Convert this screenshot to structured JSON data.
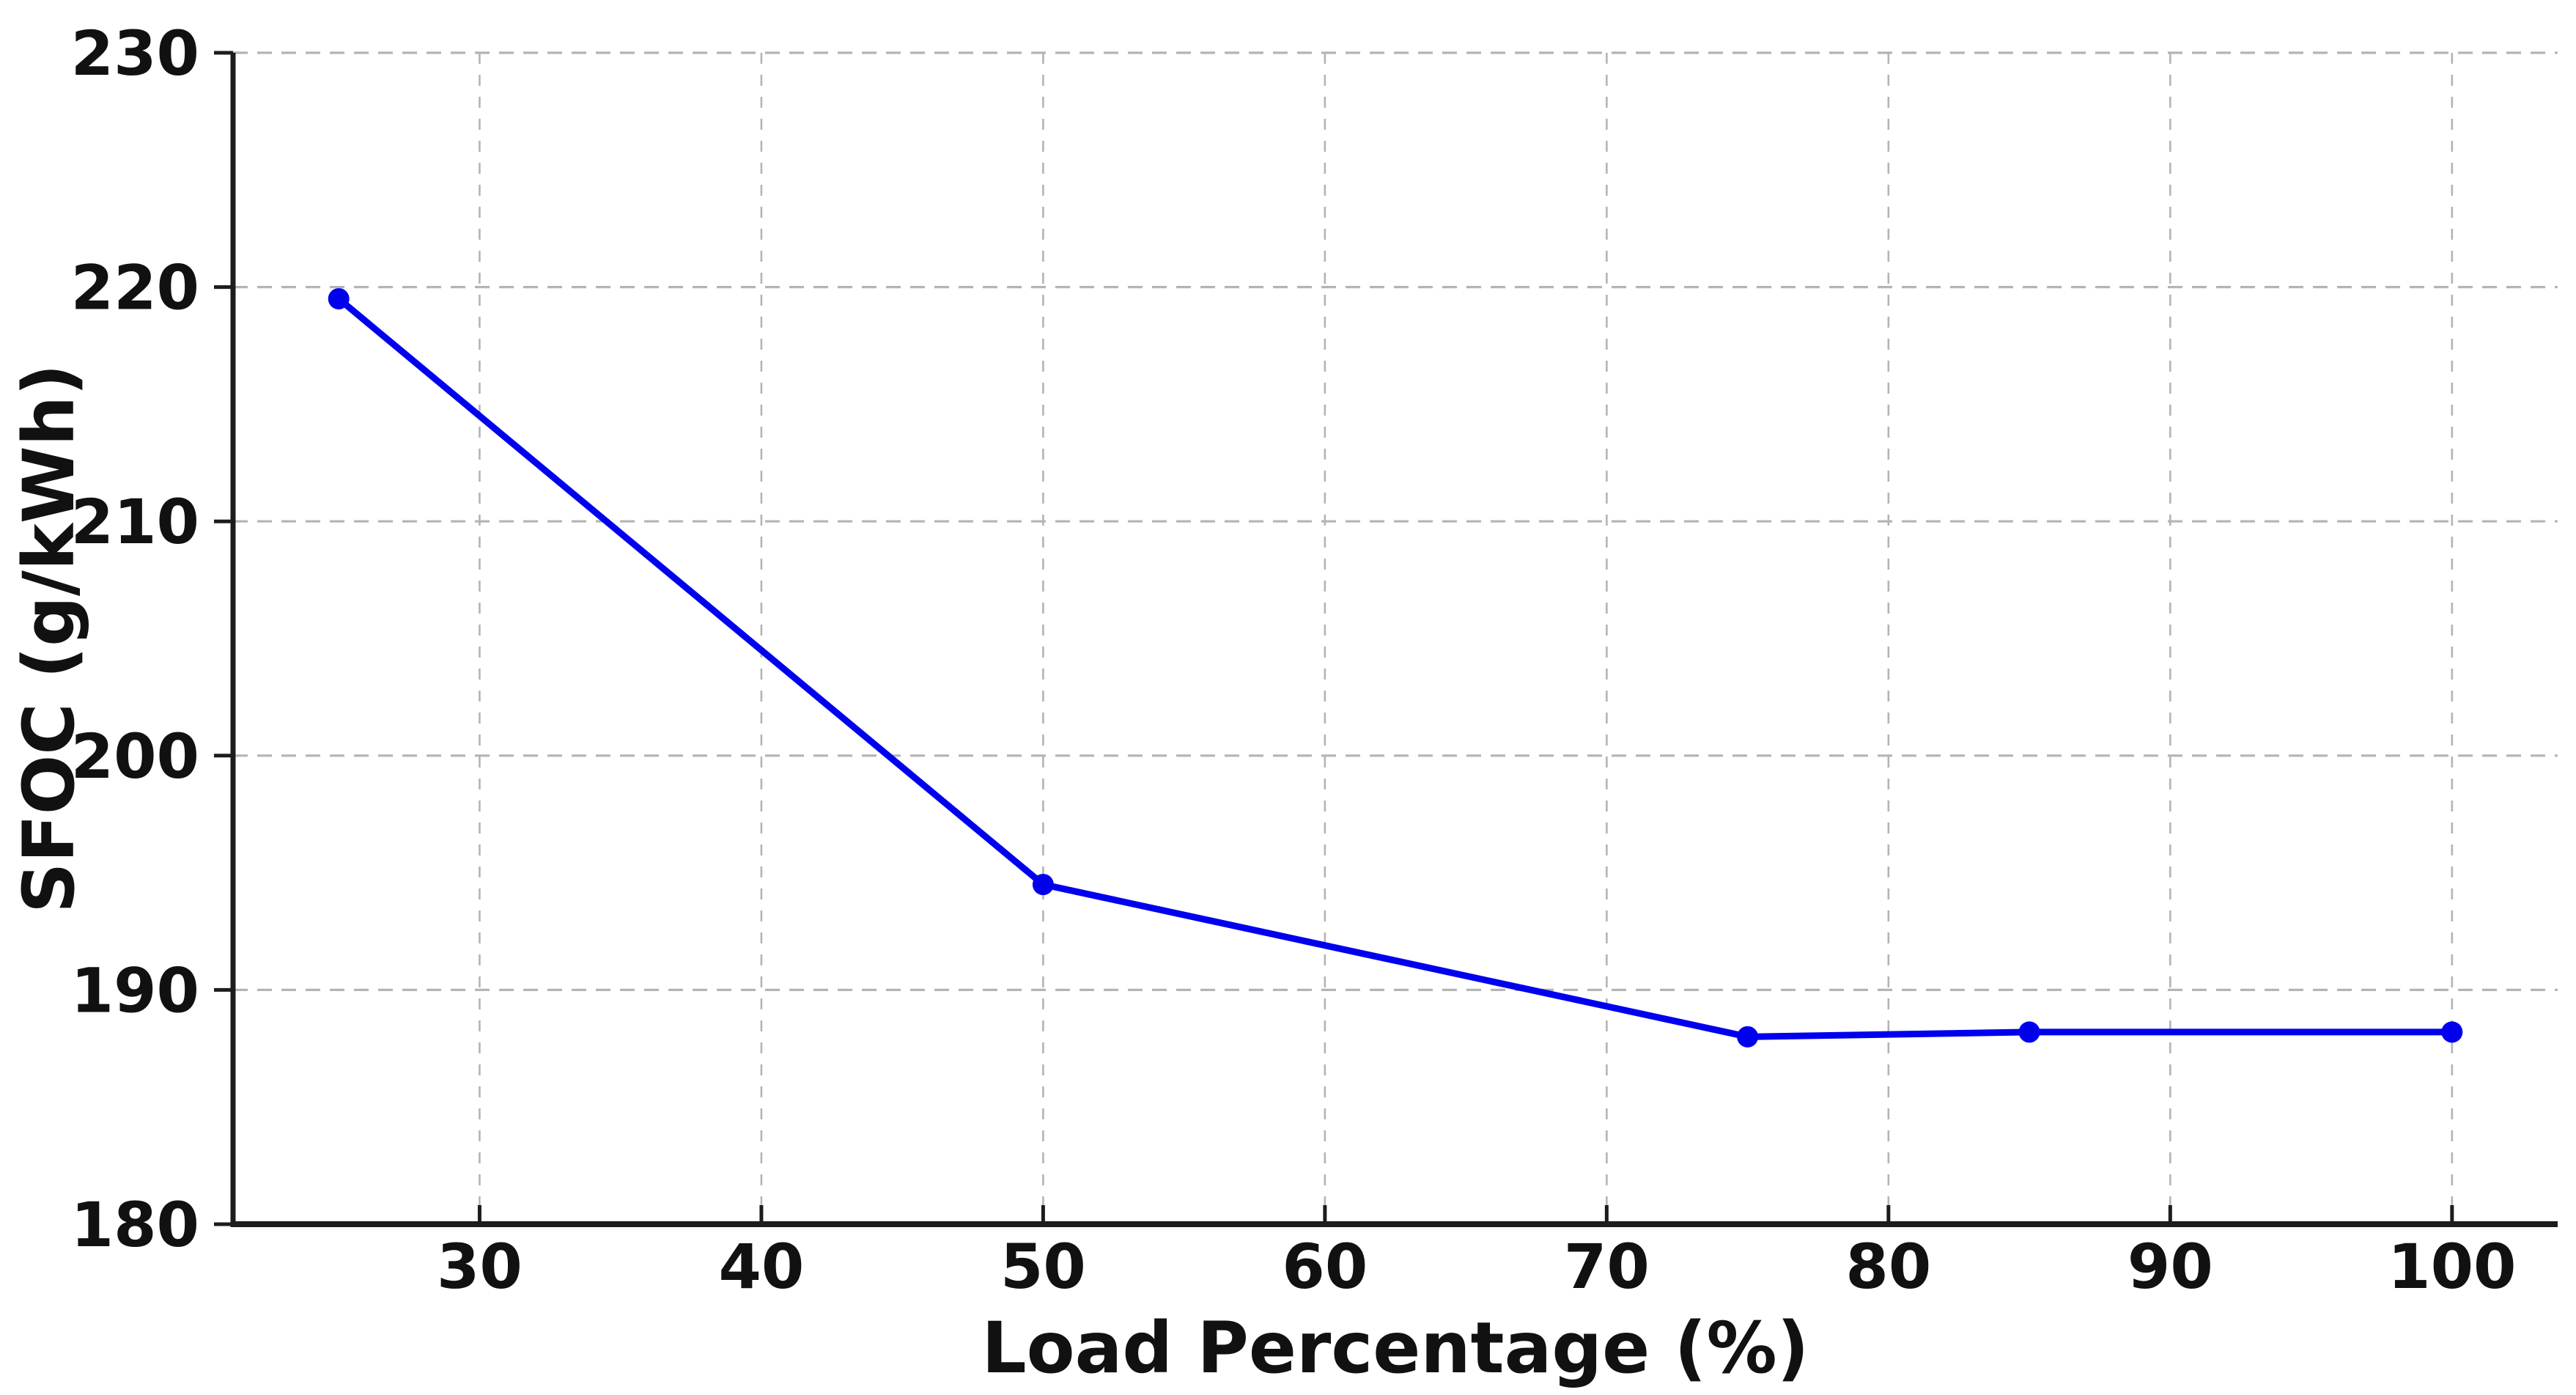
{
  "chart_data": {
    "type": "line",
    "title": "",
    "xlabel": "Load Percentage (%)",
    "ylabel": "SFOC (g/kWh)",
    "x": [
      25,
      50,
      75,
      85,
      100
    ],
    "y": [
      219.5,
      194.5,
      188.0,
      188.2,
      188.2
    ],
    "series_name": "SFOC",
    "x_ticks": [
      "30",
      "40",
      "50",
      "60",
      "70",
      "80",
      "90",
      "100"
    ],
    "x_tick_values": [
      30,
      40,
      50,
      60,
      70,
      80,
      90,
      100
    ],
    "y_ticks": [
      "180",
      "190",
      "200",
      "210",
      "220",
      "230"
    ],
    "y_tick_values": [
      180,
      190,
      200,
      210,
      220,
      230
    ],
    "xlim": [
      21.25,
      103.75
    ],
    "ylim": [
      180,
      230
    ],
    "grid": true,
    "grid_style": "dashed",
    "legend_position": "none",
    "line_color": "#0000ee",
    "marker": "circle",
    "marker_color": "#0000ee",
    "grid_color": "#b4b4b4",
    "axis_color": "#1c1c1c",
    "text_color": "#111111",
    "background_color": "#ffffff"
  }
}
